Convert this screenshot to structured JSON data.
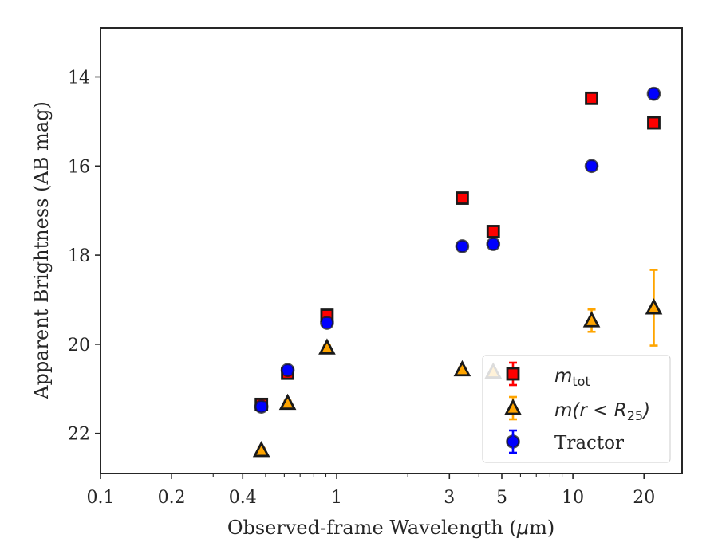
{
  "chart_data": {
    "type": "scatter",
    "xlabel_main": "Observed-frame Wavelength (",
    "xlabel_mu": "μ",
    "xlabel_end": "m)",
    "ylabel": "Apparent Brightness (AB mag)",
    "x_scale": "log",
    "xlim": [
      0.1,
      29
    ],
    "ylim": [
      12.9,
      22.9
    ],
    "y_inverted": true,
    "x_ticks": [
      0.1,
      0.2,
      0.4,
      1,
      3,
      5,
      10,
      20
    ],
    "x_tick_labels": [
      "0.1",
      "0.2",
      "0.4",
      "1",
      "3",
      "5",
      "10",
      "20"
    ],
    "y_ticks": [
      14,
      16,
      18,
      20,
      22
    ],
    "y_tick_labels": [
      "14",
      "16",
      "18",
      "20",
      "22"
    ],
    "grid": false,
    "legend_position": "lower-right",
    "series": [
      {
        "key": "mtot",
        "legend_math": "m",
        "legend_sub": "tot",
        "marker": "square",
        "color": "#ff0000",
        "errcolor": "#ff0000",
        "points": [
          {
            "x": 0.48,
            "y": 21.35,
            "err": 0.08
          },
          {
            "x": 0.62,
            "y": 20.65,
            "err": 0.08
          },
          {
            "x": 0.91,
            "y": 19.35,
            "err": 0.06
          },
          {
            "x": 3.4,
            "y": 16.72,
            "err": 0.05
          },
          {
            "x": 4.6,
            "y": 17.47,
            "err": 0.05
          },
          {
            "x": 12.0,
            "y": 14.48,
            "err": 0.05
          },
          {
            "x": 22.0,
            "y": 15.03,
            "err": 0.06
          }
        ]
      },
      {
        "key": "mr25",
        "legend_math": "m(r < R",
        "legend_sub": "25",
        "legend_end": ")",
        "marker": "triangle",
        "color": "#ffa500",
        "errcolor": "#ffa500",
        "points": [
          {
            "x": 0.48,
            "y": 22.38,
            "err": 0.05
          },
          {
            "x": 0.62,
            "y": 21.32,
            "err": 0.05
          },
          {
            "x": 0.91,
            "y": 20.08,
            "err": 0.05
          },
          {
            "x": 3.4,
            "y": 20.57,
            "err": 0.05
          },
          {
            "x": 4.6,
            "y": 20.62,
            "err": 0.05
          },
          {
            "x": 12.0,
            "y": 19.47,
            "err": 0.25
          },
          {
            "x": 22.0,
            "y": 19.18,
            "err": 0.85
          }
        ]
      },
      {
        "key": "tractor",
        "legend_text": "Tractor",
        "marker": "circle",
        "color": "#0000ff",
        "errcolor": "#0000ff",
        "points": [
          {
            "x": 0.48,
            "y": 21.4,
            "err": 0.08
          },
          {
            "x": 0.62,
            "y": 20.58,
            "err": 0.08
          },
          {
            "x": 0.91,
            "y": 19.52,
            "err": 0.08
          },
          {
            "x": 3.4,
            "y": 17.8,
            "err": 0.08
          },
          {
            "x": 4.6,
            "y": 17.75,
            "err": 0.08
          },
          {
            "x": 12.0,
            "y": 16.0,
            "err": 0.08
          },
          {
            "x": 22.0,
            "y": 14.38,
            "err": 0.08
          }
        ]
      }
    ]
  }
}
